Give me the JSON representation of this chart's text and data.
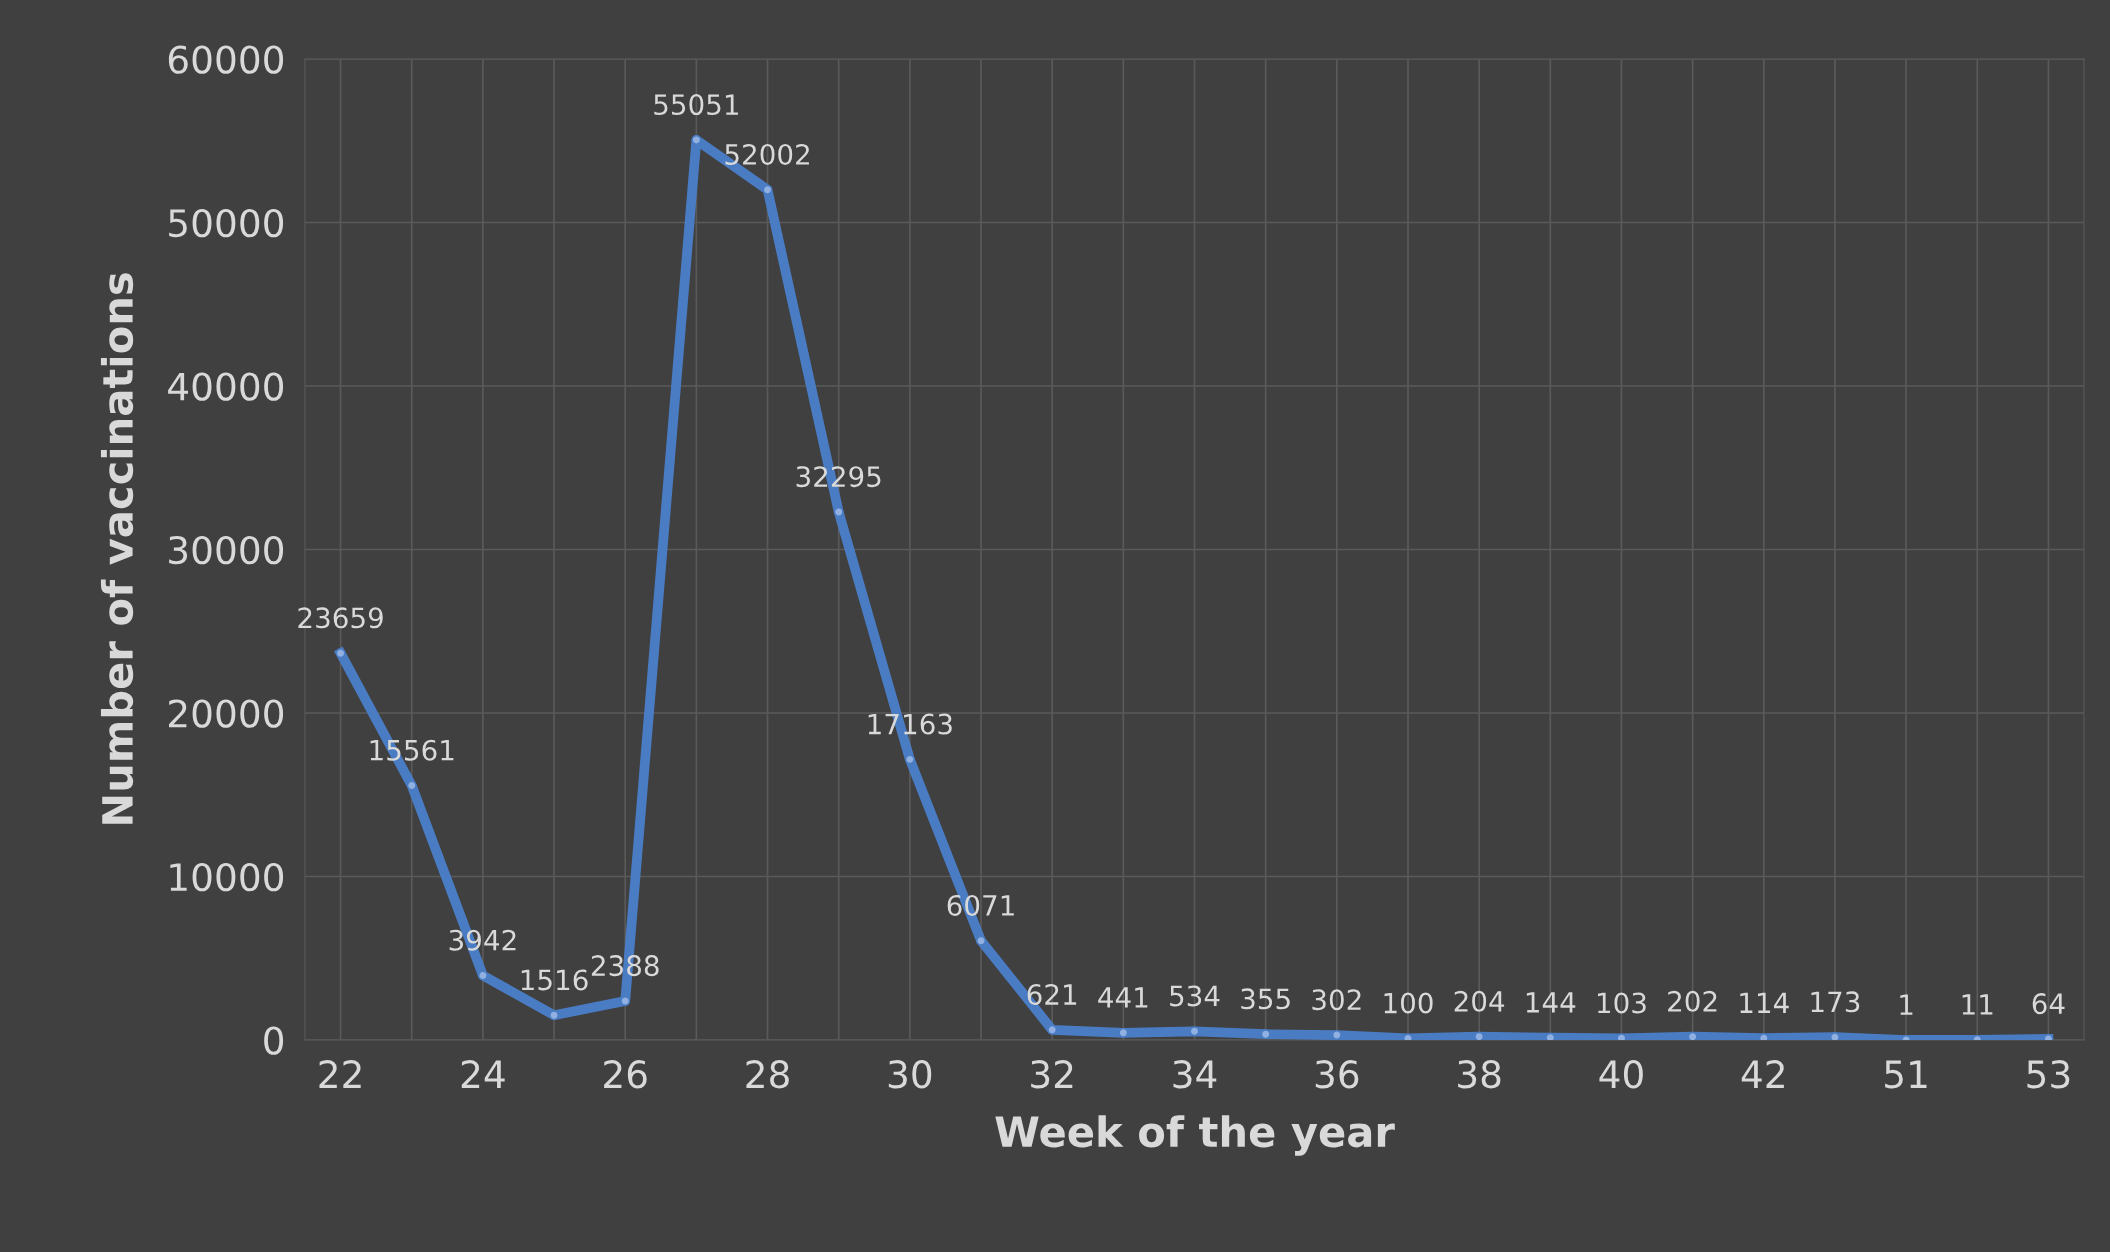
{
  "chart_data": {
    "type": "line",
    "xlabel": "Week of the year",
    "ylabel": "Number of vaccinations",
    "categories": [
      "22",
      null,
      "24",
      null,
      "26",
      null,
      "28",
      null,
      "30",
      null,
      "32",
      null,
      "34",
      null,
      "36",
      null,
      "38",
      null,
      "40",
      null,
      "42",
      null,
      "51",
      null,
      "53"
    ],
    "series": [
      {
        "color": "#4a7cc4",
        "values": [
          23659,
          15561,
          3942,
          1516,
          2388,
          55051,
          52002,
          32295,
          17163,
          6071,
          621,
          441,
          534,
          355,
          302,
          100,
          204,
          144,
          103,
          202,
          114,
          173,
          1,
          11,
          64
        ]
      }
    ],
    "ylim": [
      0,
      60000
    ],
    "yticks": [
      0,
      10000,
      20000,
      30000,
      40000,
      50000,
      60000
    ],
    "grid": true,
    "marker": "circle",
    "line_style": "solid",
    "data_labels": true
  }
}
